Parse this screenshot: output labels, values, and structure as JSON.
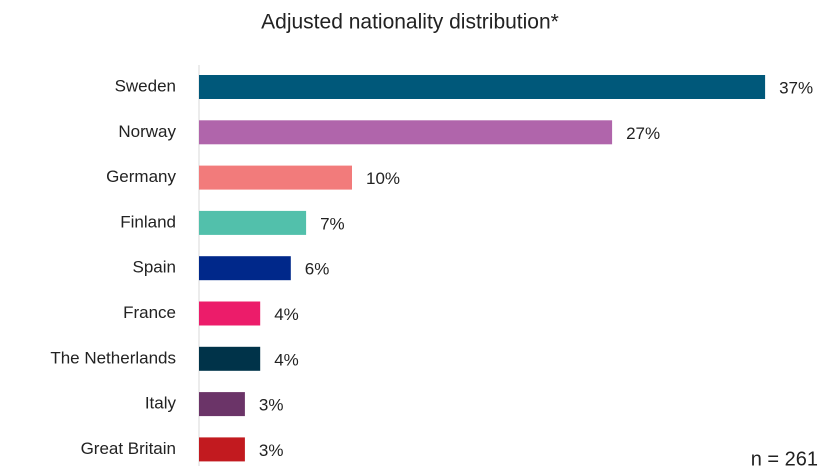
{
  "chart_data": {
    "type": "bar",
    "orientation": "horizontal",
    "title": "Adjusted nationality distribution*",
    "categories": [
      "Sweden",
      "Norway",
      "Germany",
      "Finland",
      "Spain",
      "France",
      "The Netherlands",
      "Italy",
      "Great Britain"
    ],
    "values": [
      37,
      27,
      10,
      7,
      6,
      4,
      4,
      3,
      3
    ],
    "value_labels": [
      "37%",
      "27%",
      "10%",
      "7%",
      "6%",
      "4%",
      "4%",
      "3%",
      "3%"
    ],
    "colors": [
      "#00587a",
      "#b065ab",
      "#f27b7b",
      "#52c0ab",
      "#00288a",
      "#ec1c6a",
      "#003349",
      "#6b3468",
      "#c21a1f"
    ],
    "annotation": "n = 261"
  }
}
